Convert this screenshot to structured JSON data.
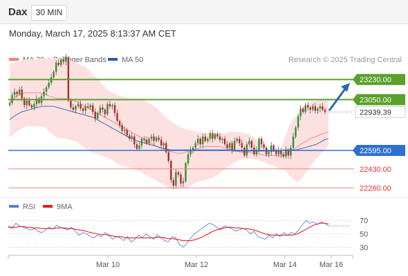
{
  "header": {
    "symbol": "Dax",
    "timeframe": "30 MIN",
    "datetime": "Monday, March 17, 2025 8:13:37 AM CET"
  },
  "credit": "Research © 2025 Trading Central",
  "colors": {
    "bb_band": "#fde1e1",
    "ma20": "#f47c7c",
    "ma50": "#2f5a9e",
    "up": "#2f8f2f",
    "down": "#b32828",
    "resistance": "#5aa02c",
    "support": "#2f6fd0",
    "support_red": "#f08080",
    "price_box": "#ffffff",
    "arrow": "#2f66b8",
    "rsi": "#5b7fd6",
    "rsi_ma": "#e02020"
  },
  "chart_data": [
    {
      "type": "candlestick",
      "title": "Dax",
      "timeframe": "30 MIN",
      "x_ticks": [
        "Mar 10",
        "Mar 12",
        "Mar 14",
        "Mar 16"
      ],
      "ylim": [
        22200,
        23460
      ],
      "legend": [
        {
          "name": "MA 20 + Bollinger Bands",
          "color": "#f47c7c"
        },
        {
          "name": "MA 50",
          "color": "#2f5a9e"
        }
      ],
      "levels": [
        {
          "label": "23230.00",
          "value": 23230,
          "kind": "resistance"
        },
        {
          "label": "23050.00",
          "value": 23050,
          "kind": "resistance"
        },
        {
          "label": "22939.39",
          "value": 22939.39,
          "kind": "current"
        },
        {
          "label": "22595.00",
          "value": 22595,
          "kind": "support"
        },
        {
          "label": "22430.00",
          "value": 22430,
          "kind": "support_red"
        },
        {
          "label": "22260.00",
          "value": 22260,
          "kind": "support_red"
        }
      ],
      "close": [
        23020,
        23090,
        23120,
        23100,
        23140,
        23060,
        23000,
        23040,
        23000,
        22980,
        23010,
        23060,
        23020,
        23080,
        23120,
        23160,
        23200,
        23250,
        23300,
        23380,
        23360,
        23410,
        23390,
        23430,
        23040,
        22980,
        22960,
        22990,
        23010,
        22970,
        22950,
        22990,
        22980,
        23000,
        22940,
        22880,
        22930,
        22980,
        22960,
        22920,
        23010,
        22990,
        23000,
        22930,
        22860,
        22820,
        22770,
        22780,
        22730,
        22700,
        22720,
        22650,
        22610,
        22640,
        22700,
        22690,
        22660,
        22700,
        22720,
        22680,
        22710,
        22690,
        22640,
        22660,
        22580,
        22500,
        22330,
        22280,
        22400,
        22380,
        22300,
        22320,
        22480,
        22560,
        22600,
        22620,
        22660,
        22700,
        22650,
        22720,
        22680,
        22700,
        22750,
        22700,
        22740,
        22720,
        22690,
        22700,
        22650,
        22620,
        22660,
        22600,
        22680,
        22700,
        22660,
        22620,
        22550,
        22650,
        22680,
        22620,
        22560,
        22600,
        22700,
        22650,
        22620,
        22560,
        22580,
        22640,
        22590,
        22560,
        22600,
        22560,
        22540,
        22600,
        22550,
        22620,
        22720,
        22800,
        22900,
        22970,
        22940,
        23000,
        22980,
        22960,
        22990,
        22950,
        22970,
        22990,
        22960,
        22940
      ],
      "bb_upper": [
        23370,
        23380,
        23390,
        23400,
        23410,
        23410,
        23410,
        23410,
        23420,
        23420,
        23420,
        23420,
        23420,
        23420,
        23410,
        23400,
        23390,
        23380,
        23360,
        23340,
        23310,
        23270,
        23240,
        23200,
        23160,
        23130,
        23110,
        23090,
        23080,
        23070,
        23060,
        23060,
        23060,
        23050,
        23040,
        23020,
        23000,
        22970,
        22930,
        22900,
        22870,
        22840,
        22820,
        22800,
        22790,
        22780,
        22770,
        22760,
        22760,
        22750,
        22750,
        22750,
        22750,
        22750,
        22750,
        22760,
        22760,
        22760,
        22760,
        22750,
        22740,
        22720,
        22690,
        22660,
        22630,
        22600,
        22570,
        22550,
        22600,
        22700,
        22800,
        22870,
        22900,
        22960,
        23000,
        23020,
        23040,
        23040,
        23050,
        23060,
        23060
      ],
      "ma20": [
        23020,
        23060,
        23090,
        23100,
        23110,
        23110,
        23110,
        23110,
        23110,
        23100,
        23080,
        23070,
        23060,
        23060,
        23060,
        23050,
        23040,
        23030,
        23010,
        22990,
        22970,
        22950,
        22930,
        22910,
        22890,
        22870,
        22850,
        22830,
        22810,
        22790,
        22770,
        22750,
        22730,
        22710,
        22690,
        22670,
        22650,
        22630,
        22610,
        22600,
        22590,
        22580,
        22570,
        22570,
        22580,
        22590,
        22600,
        22610,
        22620,
        22630,
        22630,
        22630,
        22630,
        22630,
        22620,
        22610,
        22600,
        22590,
        22580,
        22580,
        22580,
        22570,
        22570,
        22560,
        22550,
        22550,
        22550,
        22550,
        22550,
        22560,
        22580,
        22600,
        22620,
        22650,
        22670,
        22690,
        22710,
        22720,
        22740,
        22750,
        22760
      ],
      "bb_lower": [
        22710,
        22740,
        22770,
        22790,
        22810,
        22810,
        22810,
        22810,
        22810,
        22800,
        22760,
        22730,
        22710,
        22700,
        22700,
        22690,
        22680,
        22670,
        22640,
        22610,
        22590,
        22570,
        22560,
        22550,
        22540,
        22520,
        22500,
        22480,
        22460,
        22450,
        22440,
        22430,
        22420,
        22400,
        22380,
        22360,
        22340,
        22320,
        22300,
        22280,
        22260,
        22250,
        22250,
        22250,
        22260,
        22270,
        22290,
        22310,
        22320,
        22330,
        22340,
        22350,
        22370,
        22400,
        22430,
        22450,
        22480,
        22500,
        22510,
        22520,
        22520,
        22520,
        22510,
        22500,
        22490,
        22470,
        22460,
        22440,
        22430,
        22420,
        22380,
        22340,
        22310,
        22330,
        22380,
        22430,
        22480,
        22520,
        22560,
        22600,
        22640
      ],
      "ma50": [
        22870,
        22900,
        22920,
        22940,
        22950,
        22960,
        22970,
        22980,
        22990,
        22990,
        22990,
        22990,
        22980,
        22970,
        22960,
        22950,
        22940,
        22930,
        22920,
        22910,
        22900,
        22890,
        22870,
        22850,
        22830,
        22810,
        22790,
        22770,
        22750,
        22730,
        22710,
        22700,
        22680,
        22670,
        22660,
        22650,
        22640,
        22630,
        22620,
        22610,
        22600,
        22600,
        22600,
        22600,
        22600,
        22600,
        22600,
        22600,
        22600,
        22600,
        22600,
        22600,
        22600,
        22600,
        22600,
        22600,
        22590,
        22590,
        22590,
        22590,
        22590,
        22590,
        22590,
        22590,
        22590,
        22590,
        22590,
        22590,
        22590,
        22600,
        22600,
        22600,
        22600,
        22610,
        22620,
        22630,
        22640,
        22650,
        22670,
        22690,
        22700
      ]
    },
    {
      "type": "line",
      "title": "RSI",
      "legend": [
        {
          "name": "RSI",
          "color": "#5b7fd6"
        },
        {
          "name": "9MA",
          "color": "#e02020"
        }
      ],
      "ylim": [
        20,
        80
      ],
      "y_ticks": [
        "70",
        "50",
        "30"
      ],
      "rsi": [
        62,
        58,
        66,
        62,
        60,
        58,
        56,
        58,
        54,
        52,
        56,
        60,
        57,
        63,
        60,
        58,
        56,
        60,
        54,
        48,
        52,
        50,
        46,
        44,
        48,
        46,
        52,
        48,
        42,
        46,
        44,
        40,
        46,
        38,
        42,
        48,
        44,
        50,
        46,
        42,
        48,
        44,
        40,
        38,
        46,
        44,
        34,
        30,
        36,
        44,
        50,
        54,
        58,
        62,
        66,
        64,
        60,
        56,
        62,
        60,
        58,
        54,
        56,
        58,
        56,
        50,
        54,
        46,
        44,
        42,
        48,
        44,
        50,
        46,
        52,
        48,
        52,
        50,
        56,
        64,
        70,
        66,
        68,
        64,
        68,
        66,
        62
      ],
      "rsi_ma": [
        60,
        60,
        60,
        61,
        61,
        60,
        60,
        59,
        59,
        58,
        58,
        58,
        58,
        59,
        59,
        59,
        58,
        58,
        57,
        56,
        55,
        54,
        52,
        51,
        50,
        49,
        49,
        48,
        47,
        46,
        46,
        45,
        44,
        44,
        44,
        44,
        44,
        44,
        44,
        44,
        45,
        45,
        44,
        43,
        43,
        42,
        41,
        40,
        40,
        40,
        41,
        43,
        45,
        48,
        51,
        54,
        56,
        58,
        59,
        60,
        60,
        59,
        59,
        58,
        58,
        57,
        56,
        54,
        52,
        50,
        49,
        48,
        48,
        48,
        48,
        48,
        48,
        49,
        51,
        54,
        57,
        60,
        63,
        65,
        66,
        66,
        65
      ]
    }
  ]
}
